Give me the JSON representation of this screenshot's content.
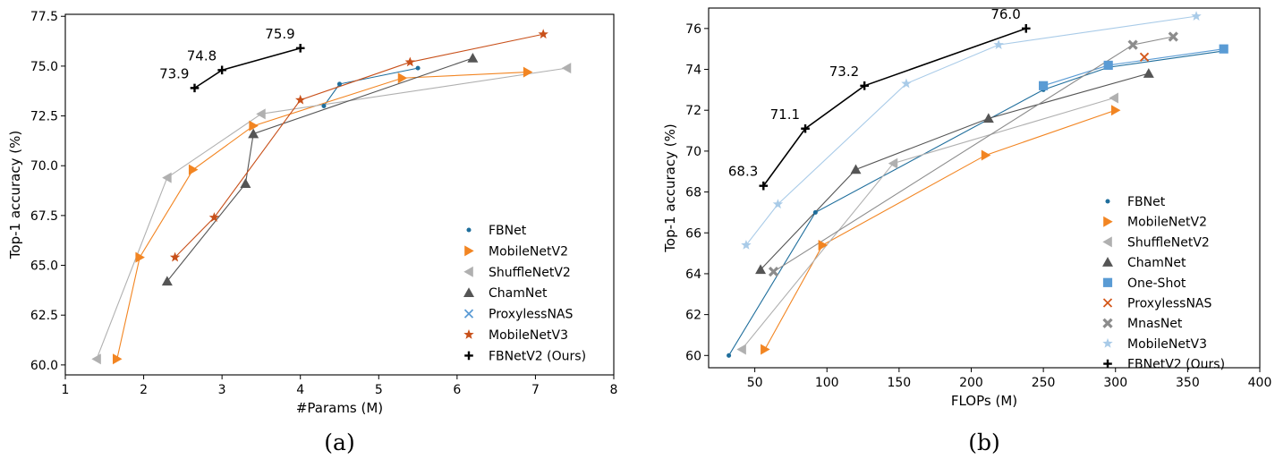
{
  "colors": {
    "FBNet": "#1f6e9c",
    "MobileNetV2": "#f28522",
    "ShuffleNetV2": "#b0b0b0",
    "ChamNet": "#555555",
    "One-Shot": "#5a9bd4",
    "ProxylessNAS": "#d4581a",
    "ProxylessNAS_a": "#5b9bd5",
    "MnasNet": "#8c8c8c",
    "MobileNetV3": "#a9cbe8",
    "MobileNetV3_a": "#c8501a",
    "FBNetV2 (Ours)": "#000000"
  },
  "chart_data": [
    {
      "type": "line",
      "caption": "(a)",
      "xlabel": "#Params (M)",
      "ylabel": "Top-1 accuracy (%)",
      "xlim": [
        1,
        8
      ],
      "ylim": [
        59.5,
        77.6
      ],
      "xticks": [
        "1",
        "2",
        "3",
        "4",
        "5",
        "6",
        "7",
        "8"
      ],
      "yticks": [
        "60.0",
        "62.5",
        "65.0",
        "67.5",
        "70.0",
        "72.5",
        "75.0",
        "77.5"
      ],
      "grid": false,
      "legend": "lower-right",
      "series": [
        {
          "name": "FBNet",
          "marker": "dot",
          "x": [
            4.3,
            4.5,
            5.5
          ],
          "y": [
            73.0,
            74.1,
            74.9
          ]
        },
        {
          "name": "MobileNetV2",
          "marker": "tri-right",
          "x": [
            1.66,
            1.95,
            2.63,
            3.4,
            5.3,
            6.9
          ],
          "y": [
            60.3,
            65.4,
            69.8,
            72.0,
            74.4,
            74.7
          ]
        },
        {
          "name": "ShuffleNetV2",
          "marker": "tri-left",
          "x": [
            1.4,
            2.3,
            3.5,
            7.4
          ],
          "y": [
            60.3,
            69.4,
            72.6,
            74.9
          ]
        },
        {
          "name": "ChamNet",
          "marker": "tri-up",
          "x": [
            2.3,
            3.3,
            3.4,
            6.2
          ],
          "y": [
            64.2,
            69.1,
            71.6,
            75.4
          ]
        },
        {
          "name": "ProxylessNAS",
          "marker": "x",
          "x": [],
          "y": []
        },
        {
          "name": "MobileNetV3",
          "marker": "star",
          "x": [
            2.4,
            2.9,
            4.0,
            5.4,
            7.1
          ],
          "y": [
            65.4,
            67.4,
            73.3,
            75.2,
            76.6
          ]
        },
        {
          "name": "FBNetV2 (Ours)",
          "marker": "plus",
          "x": [
            2.65,
            3.0,
            4.0
          ],
          "y": [
            73.9,
            74.8,
            75.9
          ],
          "labels": [
            "73.9",
            "74.8",
            "75.9"
          ]
        }
      ]
    },
    {
      "type": "line",
      "caption": "(b)",
      "xlabel": "FLOPs (M)",
      "ylabel": "Top-1 accuracy (%)",
      "xlim": [
        18,
        400
      ],
      "ylim": [
        59.4,
        77.0
      ],
      "xticks": [
        "50",
        "100",
        "150",
        "200",
        "250",
        "300",
        "350",
        "400"
      ],
      "yticks": [
        "60",
        "62",
        "64",
        "66",
        "68",
        "70",
        "72",
        "74",
        "76"
      ],
      "grid": false,
      "legend": "lower-right",
      "series": [
        {
          "name": "FBNet",
          "marker": "dot",
          "x": [
            32,
            92,
            250,
            295,
            375
          ],
          "y": [
            60.0,
            67.0,
            73.0,
            74.1,
            74.9
          ]
        },
        {
          "name": "MobileNetV2",
          "marker": "tri-right",
          "x": [
            57,
            97,
            210,
            300
          ],
          "y": [
            60.3,
            65.4,
            69.8,
            72.0
          ]
        },
        {
          "name": "ShuffleNetV2",
          "marker": "tri-left",
          "x": [
            41,
            146,
            299
          ],
          "y": [
            60.3,
            69.4,
            72.6
          ]
        },
        {
          "name": "ChamNet",
          "marker": "tri-up",
          "x": [
            54,
            120,
            212,
            323
          ],
          "y": [
            64.2,
            69.1,
            71.6,
            73.8
          ]
        },
        {
          "name": "One-Shot",
          "marker": "square",
          "x": [
            250,
            295,
            375
          ],
          "y": [
            73.2,
            74.2,
            75.0
          ]
        },
        {
          "name": "ProxylessNAS",
          "marker": "x",
          "x": [
            320
          ],
          "y": [
            74.6
          ]
        },
        {
          "name": "MnasNet",
          "marker": "x-thick",
          "x": [
            63,
            312,
            340
          ],
          "y": [
            64.1,
            75.2,
            75.6
          ]
        },
        {
          "name": "MobileNetV3",
          "marker": "star",
          "x": [
            44,
            66,
            155,
            219,
            356
          ],
          "y": [
            65.4,
            67.4,
            73.3,
            75.2,
            76.6
          ]
        },
        {
          "name": "FBNetV2 (Ours)",
          "marker": "plus",
          "x": [
            56,
            85,
            126,
            238
          ],
          "y": [
            68.3,
            71.1,
            73.2,
            76.0
          ],
          "labels": [
            "68.3",
            "71.1",
            "73.2",
            "76.0"
          ]
        }
      ]
    }
  ]
}
